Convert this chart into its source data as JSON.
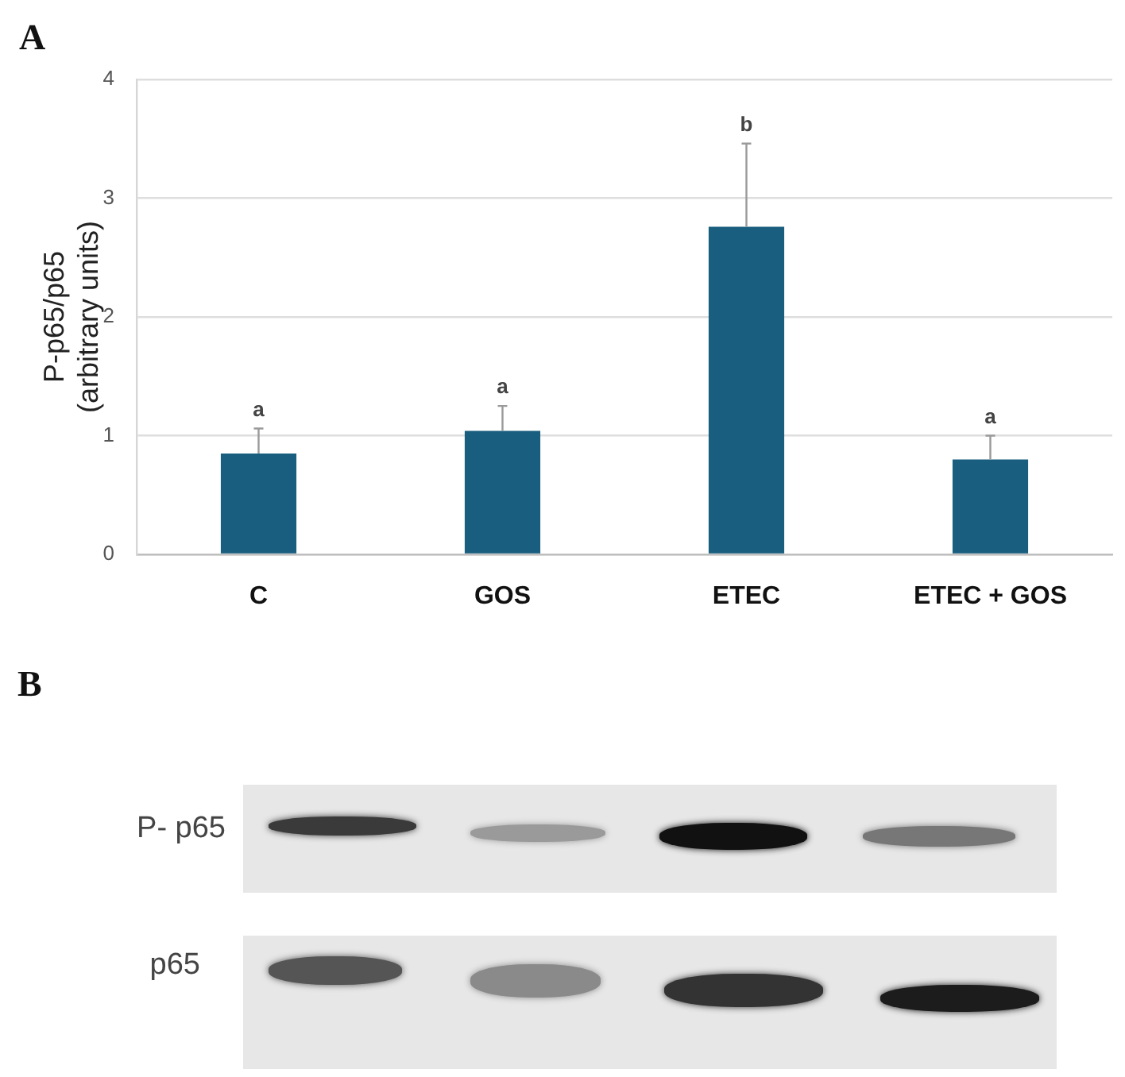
{
  "chart_data": {
    "type": "bar",
    "categories": [
      "C",
      "GOS",
      "ETEC",
      "ETEC + GOS"
    ],
    "values": [
      0.85,
      1.04,
      2.76,
      0.8
    ],
    "color": "#1a5e7f",
    "errors": [
      [
        0.85,
        1.06
      ],
      [
        1.04,
        1.25
      ],
      [
        2.76,
        3.46
      ],
      [
        0.8,
        1.0
      ]
    ],
    "ylabel": "P-p65/p65\n(arbitrary units)",
    "ylim": [
      0,
      4
    ],
    "yticks": [
      0,
      1,
      2,
      3,
      4
    ],
    "grid": "y",
    "legend": false,
    "annotations": [
      "A",
      {
        "text": "a",
        "x": "C",
        "y": 1.06
      },
      {
        "text": "a",
        "x": "GOS",
        "y": 1.25
      },
      {
        "text": "b",
        "x": "ETEC",
        "y": 3.46
      },
      {
        "text": "a",
        "x": "ETEC + GOS",
        "y": 1.0
      },
      "B",
      "P- p65",
      "p65"
    ]
  }
}
